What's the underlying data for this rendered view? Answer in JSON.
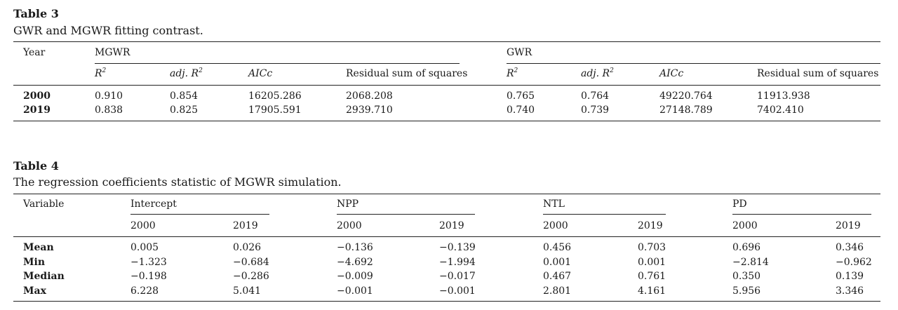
{
  "table3": {
    "label": "Table 3",
    "caption": "GWR and MGWR fitting contrast.",
    "year_header": "Year",
    "groups": [
      "MGWR",
      "GWR"
    ],
    "metrics": [
      {
        "base": "R",
        "sup": "2"
      },
      {
        "base": "adj. R",
        "sup": "2"
      },
      {
        "base": "AICc",
        "sup": ""
      },
      {
        "base": "Residual sum of squares",
        "sup": ""
      }
    ],
    "rows": [
      {
        "year": "2000",
        "values": [
          "0.910",
          "0.854",
          "16205.286",
          "2068.208",
          "0.765",
          "0.764",
          "49220.764",
          "11913.938"
        ]
      },
      {
        "year": "2019",
        "values": [
          "0.838",
          "0.825",
          "17905.591",
          "2939.710",
          "0.740",
          "0.739",
          "27148.789",
          "7402.410"
        ]
      }
    ]
  },
  "table4": {
    "label": "Table 4",
    "caption": "The regression coefficients statistic of MGWR simulation.",
    "variable_header": "Variable",
    "groups": [
      "Intercept",
      "NPP",
      "NTL",
      "PD"
    ],
    "years": [
      "2000",
      "2019"
    ],
    "rows": [
      {
        "name": "Mean",
        "values": [
          "0.005",
          "0.026",
          "−0.136",
          "−0.139",
          "0.456",
          "0.703",
          "0.696",
          "0.346"
        ]
      },
      {
        "name": "Min",
        "values": [
          "−1.323",
          "−0.684",
          "−4.692",
          "−1.994",
          "0.001",
          "0.001",
          "−2.814",
          "−0.962"
        ]
      },
      {
        "name": "Median",
        "values": [
          "−0.198",
          "−0.286",
          "−0.009",
          "−0.017",
          "0.467",
          "0.761",
          "0.350",
          "0.139"
        ]
      },
      {
        "name": "Max",
        "values": [
          "6.228",
          "5.041",
          "−0.001",
          "−0.001",
          "2.801",
          "4.161",
          "5.956",
          "3.346"
        ]
      }
    ]
  }
}
